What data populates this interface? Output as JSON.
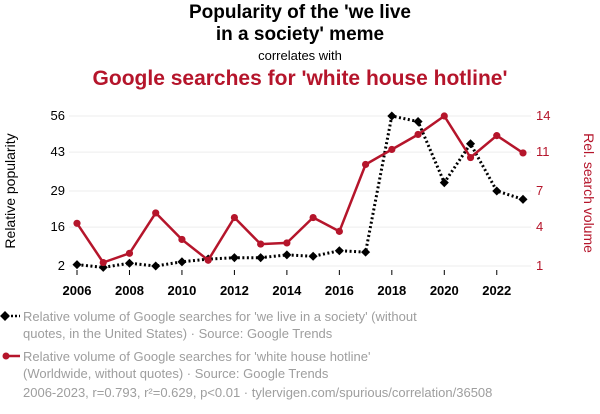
{
  "title_line1": "Popularity of the 'we live",
  "title_line2": "in a society' meme",
  "correlates": "correlates with",
  "subtitle": "Google searches for 'white house hotline'",
  "colors": {
    "series1": "#000000",
    "series2": "#b5152b",
    "muted": "#9e9e9e",
    "grid": "#eeeeee"
  },
  "chart_data": {
    "type": "line",
    "x": [
      2006,
      2007,
      2008,
      2009,
      2010,
      2011,
      2012,
      2013,
      2014,
      2015,
      2016,
      2017,
      2018,
      2019,
      2020,
      2021,
      2022,
      2023
    ],
    "xticks": [
      "2006",
      "2008",
      "2010",
      "2012",
      "2014",
      "2016",
      "2018",
      "2020",
      "2022"
    ],
    "ylabel_left": "Relative popularity",
    "ylabel_right": "Rel. search volume",
    "yticks_left": [
      "2",
      "16",
      "29",
      "43",
      "56"
    ],
    "yticks_right": [
      "1",
      "4",
      "7",
      "11",
      "14"
    ],
    "ylim_left": [
      2,
      56
    ],
    "ylim_right": [
      1,
      14
    ],
    "series": [
      {
        "name": "Relative volume of Google searches for 'we live in a society' (without quotes, in the United States) · Source: Google Trends",
        "axis": "left",
        "style": "dotted",
        "marker": "diamond",
        "values": [
          2.5,
          1.5,
          3.0,
          2.0,
          3.5,
          4.5,
          5.0,
          5.0,
          6.0,
          5.5,
          7.5,
          7.0,
          56,
          54,
          32,
          46,
          29,
          26
        ]
      },
      {
        "name": "Relative volume of Google searches for 'white house hotline' (Worldwide, without quotes) · Source: Google Trends",
        "axis": "right",
        "style": "solid",
        "marker": "circle",
        "values": [
          4.7,
          1.3,
          2.1,
          5.6,
          3.3,
          1.5,
          5.2,
          2.9,
          3.0,
          5.2,
          4.0,
          9.8,
          11.1,
          12.4,
          14.0,
          10.4,
          12.3,
          10.8
        ]
      }
    ]
  },
  "legend": [
    {
      "line1": "Relative volume of Google searches for 'we live in a society' (without",
      "line2": "quotes, in the United States) · Source: Google Trends"
    },
    {
      "line1": "Relative volume of Google searches for 'white house hotline'",
      "line2": "(Worldwide, without quotes) · Source: Google Trends"
    }
  ],
  "footer": "2006-2023, r=0.793, r²=0.629, p<0.01 · tylervigen.com/spurious/correlation/36508"
}
